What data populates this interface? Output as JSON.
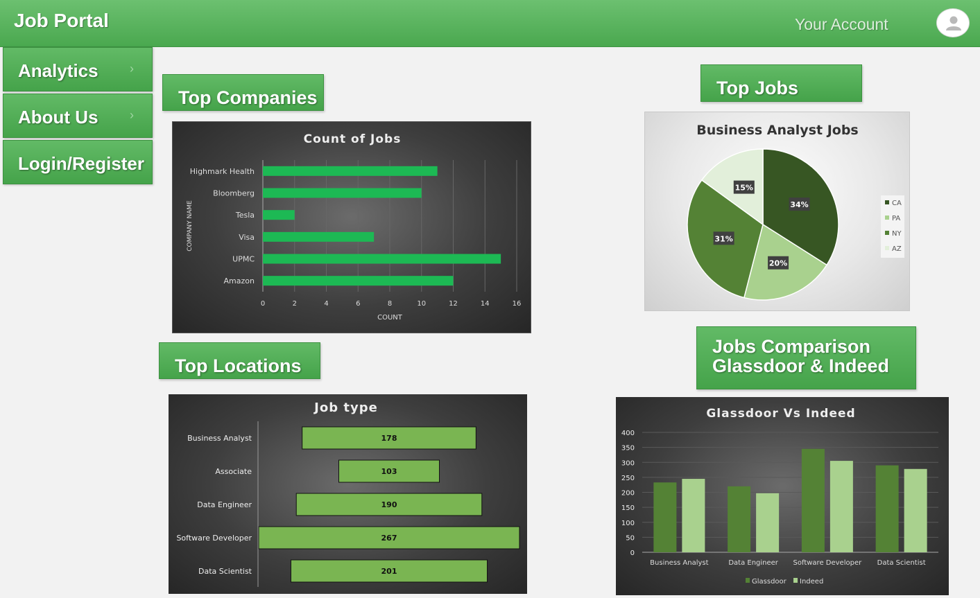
{
  "header": {
    "title": "Job Portal",
    "account_label": "Your Account"
  },
  "sidebar": {
    "items": [
      {
        "label": "Analytics",
        "chevron": "›"
      },
      {
        "label": "About Us",
        "chevron": "›"
      },
      {
        "label": "Login/Register",
        "chevron": ""
      }
    ]
  },
  "sections": {
    "top_companies": "Top Companies",
    "top_jobs": "Top Jobs",
    "top_locations": "Top Locations",
    "jobs_comparison_line1": "Jobs Comparison",
    "jobs_comparison_line2": "Glassdoor & Indeed"
  },
  "colors": {
    "header_green": "#4aa84f",
    "bar_green": "#1db954",
    "pale_green": "#7ab552"
  },
  "chart_data": [
    {
      "type": "bar",
      "orientation": "horizontal",
      "title": "Count of Jobs",
      "xlabel": "COUNT",
      "ylabel": "COMPANY NAME",
      "categories": [
        "Highmark Health",
        "Bloomberg",
        "Tesla",
        "Visa",
        "UPMC",
        "Amazon"
      ],
      "values": [
        11,
        10,
        2,
        7,
        15,
        12
      ],
      "xlim": [
        0,
        16
      ],
      "xticks": [
        0,
        2,
        4,
        6,
        8,
        10,
        12,
        14,
        16
      ],
      "grid": true
    },
    {
      "type": "pie",
      "title": "Business Analyst Jobs",
      "categories": [
        "CA",
        "PA",
        "NY",
        "AZ"
      ],
      "values": [
        34,
        20,
        31,
        15
      ],
      "data_labels": [
        "34%",
        "20%",
        "31%",
        "15%"
      ],
      "colors": [
        "#375623",
        "#a9d18e",
        "#548235",
        "#e2efda"
      ],
      "legend": "right"
    },
    {
      "type": "bar",
      "orientation": "horizontal",
      "title": "Job type",
      "categories": [
        "Business Analyst",
        "Associate",
        "Data Engineer",
        "Software Developer",
        "Data Scientist"
      ],
      "values": [
        178,
        103,
        190,
        267,
        201
      ],
      "data_labels": [
        "178",
        "103",
        "190",
        "267",
        "201"
      ]
    },
    {
      "type": "bar",
      "title": "Glassdoor  Vs  Indeed",
      "categories": [
        "Business Analyst",
        "Data Engineer",
        "Software Developer",
        "Data Scientist"
      ],
      "series": [
        {
          "name": "Glassdoor",
          "values": [
            233,
            220,
            345,
            290
          ],
          "color": "#548235"
        },
        {
          "name": "Indeed",
          "values": [
            245,
            197,
            305,
            278
          ],
          "color": "#a9d18e"
        }
      ],
      "ylim": [
        0,
        400
      ],
      "yticks": [
        0,
        50,
        100,
        150,
        200,
        250,
        300,
        350,
        400
      ],
      "legend": "bottom",
      "grid": true
    }
  ]
}
